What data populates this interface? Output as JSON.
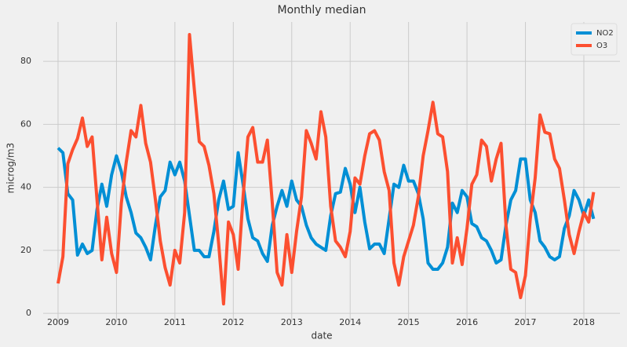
{
  "chart_data": {
    "type": "line",
    "title": "Monthly median",
    "x_label": "date",
    "y_label": "microg/m3",
    "x": [
      2009,
      2009.083,
      2009.167,
      2009.25,
      2009.333,
      2009.417,
      2009.5,
      2009.583,
      2009.667,
      2009.75,
      2009.833,
      2009.917,
      2010,
      2010.083,
      2010.167,
      2010.25,
      2010.333,
      2010.417,
      2010.5,
      2010.583,
      2010.667,
      2010.75,
      2010.833,
      2010.917,
      2011,
      2011.083,
      2011.167,
      2011.25,
      2011.333,
      2011.417,
      2011.5,
      2011.583,
      2011.667,
      2011.75,
      2011.833,
      2011.917,
      2012,
      2012.083,
      2012.167,
      2012.25,
      2012.333,
      2012.417,
      2012.5,
      2012.583,
      2012.667,
      2012.75,
      2012.833,
      2012.917,
      2013,
      2013.083,
      2013.167,
      2013.25,
      2013.333,
      2013.417,
      2013.5,
      2013.583,
      2013.667,
      2013.75,
      2013.833,
      2013.917,
      2014,
      2014.083,
      2014.167,
      2014.25,
      2014.333,
      2014.417,
      2014.5,
      2014.583,
      2014.667,
      2014.75,
      2014.833,
      2014.917,
      2015,
      2015.083,
      2015.167,
      2015.25,
      2015.333,
      2015.417,
      2015.5,
      2015.583,
      2015.667,
      2015.75,
      2015.833,
      2015.917,
      2016,
      2016.083,
      2016.167,
      2016.25,
      2016.333,
      2016.417,
      2016.5,
      2016.583,
      2016.667,
      2016.75,
      2016.833,
      2016.917,
      2017,
      2017.083,
      2017.167,
      2017.25,
      2017.333,
      2017.417,
      2017.5,
      2017.583,
      2017.667,
      2017.75,
      2017.833,
      2017.917,
      2018,
      2018.083,
      2018.167
    ],
    "series": [
      {
        "name": "NO2",
        "color": "#008fd5",
        "values": [
          52.5,
          51,
          38,
          36,
          18.5,
          22,
          19,
          20,
          33,
          41,
          34,
          44,
          50,
          45,
          37,
          32,
          25.5,
          24,
          21,
          17,
          28,
          37,
          39,
          48,
          44,
          48,
          42,
          31,
          20,
          20,
          18,
          18,
          26,
          36,
          42,
          33,
          34,
          51,
          41,
          30,
          24,
          23,
          19,
          16.5,
          28,
          34,
          39,
          34,
          42,
          36,
          34,
          28,
          24,
          22,
          21,
          20,
          31,
          38,
          38.5,
          46,
          41,
          32,
          40,
          29,
          20.5,
          22,
          22,
          19,
          30,
          41,
          40,
          47,
          42,
          42,
          38,
          30,
          16,
          14,
          14,
          16,
          21,
          35,
          32,
          39,
          37,
          28.5,
          27.5,
          24,
          23,
          20,
          16,
          17,
          28,
          36,
          39,
          49,
          49,
          36,
          32,
          23,
          21,
          18,
          17,
          18,
          27,
          31,
          39,
          36,
          31,
          36,
          30
        ]
      },
      {
        "name": "O3",
        "color": "#fc4f30",
        "values": [
          9.5,
          18,
          47.5,
          52,
          55.5,
          62,
          53,
          56,
          36,
          17,
          30.5,
          19,
          13,
          35,
          48,
          58,
          56,
          66,
          54,
          48,
          36,
          23,
          14.5,
          9,
          20,
          16,
          32,
          88.5,
          71,
          54.5,
          53,
          47,
          38,
          22,
          3,
          29,
          25,
          14,
          37,
          56,
          59,
          48,
          48,
          55,
          35,
          13,
          9,
          25,
          13,
          26,
          37,
          58,
          54,
          49,
          64,
          56,
          34,
          23,
          21,
          18,
          26,
          43,
          41,
          50,
          57,
          58,
          55,
          45,
          39,
          16,
          9,
          18,
          23,
          28,
          37,
          50,
          58,
          67,
          57,
          56,
          45,
          16,
          24,
          15.5,
          27,
          41,
          44,
          55,
          53,
          42,
          49,
          54,
          28,
          14,
          13,
          5,
          12,
          30,
          43,
          63,
          57.5,
          57,
          49,
          46,
          36,
          25,
          19,
          26,
          32,
          29,
          38.5
        ]
      }
    ],
    "xlim": [
      2008.745,
      2018.618
    ],
    "xticks": [
      2009,
      2010,
      2011,
      2012,
      2013,
      2014,
      2015,
      2016,
      2017,
      2018
    ],
    "ylim": [
      -2.7,
      92.5
    ],
    "yticks": [
      0,
      20,
      40,
      60,
      80
    ],
    "grid": true,
    "legend": "upper right"
  }
}
